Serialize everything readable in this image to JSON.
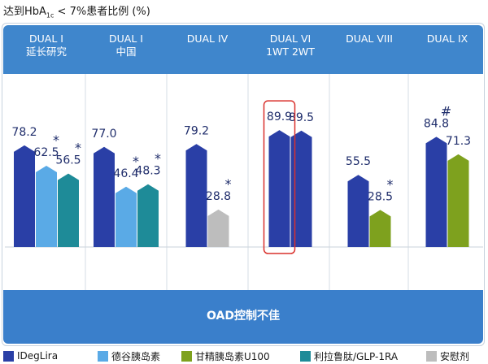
{
  "title_prefix": "达到HbA",
  "title_sub": "1c",
  "title_suffix": " < 7%患者比例 (%)",
  "footer": "OAD控制不佳",
  "colors": {
    "IDegLira": "#2a3fa6",
    "degludec": "#5aaae6",
    "glargine": "#7ea11e",
    "glp1": "#1e8b98",
    "placebo": "#bdbdbd",
    "highlight": "#d9302c"
  },
  "chart_data": {
    "type": "bar",
    "y_unit": "%",
    "groups": [
      {
        "label_lines": [
          "DUAL I",
          "延长研究"
        ],
        "bars": [
          {
            "series": "IDegLira",
            "value": 78.2,
            "label": "78.2",
            "marker": ""
          },
          {
            "series": "德谷胰岛素",
            "value": 62.5,
            "label": "62.5",
            "marker": "*"
          },
          {
            "series": "利拉鲁肽/GLP-1RA",
            "value": 56.5,
            "label": "56.5",
            "marker": "*"
          }
        ]
      },
      {
        "label_lines": [
          "DUAL I",
          "中国"
        ],
        "bars": [
          {
            "series": "IDegLira",
            "value": 77.0,
            "label": "77.0",
            "marker": ""
          },
          {
            "series": "德谷胰岛素",
            "value": 46.4,
            "label": "46.4",
            "marker": "*"
          },
          {
            "series": "利拉鲁肽/GLP-1RA",
            "value": 48.3,
            "label": "48.3",
            "marker": "*"
          }
        ]
      },
      {
        "label_lines": [
          "DUAL IV"
        ],
        "bars": [
          {
            "series": "IDegLira",
            "value": 79.2,
            "label": "79.2",
            "marker": ""
          },
          {
            "series": "安慰剂",
            "value": 28.8,
            "label": "28.8",
            "marker": "*"
          }
        ]
      },
      {
        "label_lines": [
          "DUAL VI",
          "1WT 2WT"
        ],
        "bars": [
          {
            "series": "IDegLira",
            "value": 89.9,
            "label": "89.9",
            "marker": ""
          },
          {
            "series": "IDegLira",
            "value": 89.5,
            "label": "89.5",
            "marker": ""
          }
        ]
      },
      {
        "label_lines": [
          "DUAL VIII"
        ],
        "bars": [
          {
            "series": "IDegLira",
            "value": 55.5,
            "label": "55.5",
            "marker": ""
          },
          {
            "series": "甘精胰岛素U100",
            "value": 28.5,
            "label": "28.5",
            "marker": "*"
          }
        ]
      },
      {
        "label_lines": [
          "DUAL IX"
        ],
        "bars": [
          {
            "series": "IDegLira",
            "value": 84.8,
            "label": "84.8",
            "marker": "#"
          },
          {
            "series": "甘精胰岛素U100",
            "value": 71.3,
            "label": "71.3",
            "marker": ""
          }
        ]
      }
    ],
    "legend": [
      "IDegLira",
      "德谷胰岛素",
      "甘精胰岛素U100",
      "利拉鲁肽/GLP-1RA",
      "安慰剂"
    ]
  }
}
